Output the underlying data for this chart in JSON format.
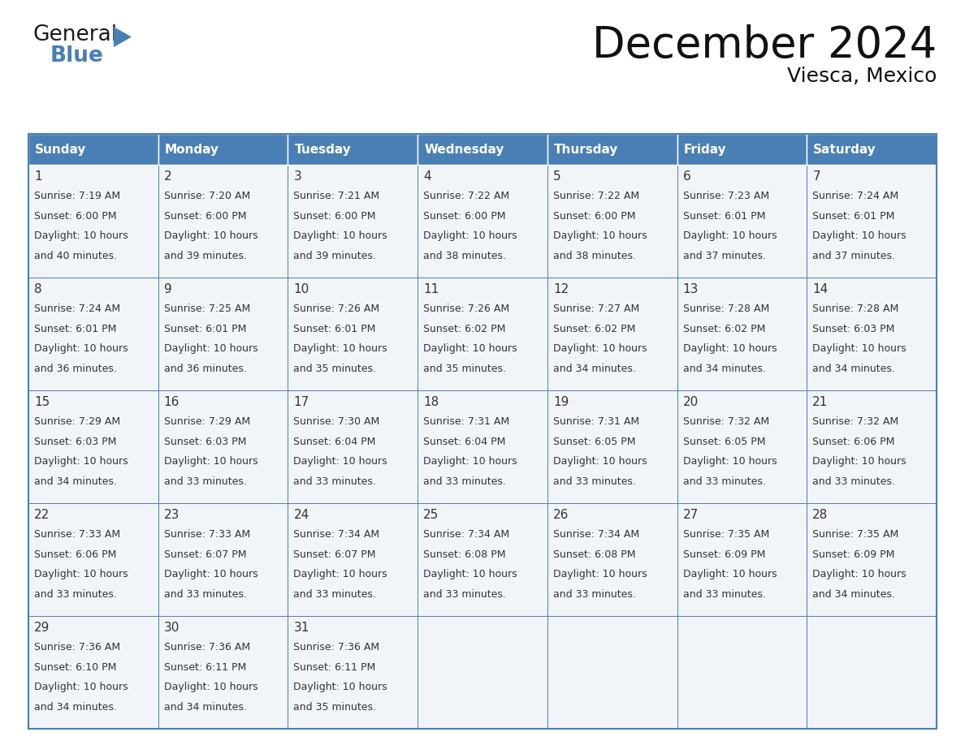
{
  "title": "December 2024",
  "subtitle": "Viesca, Mexico",
  "header_bg_color": "#4a7fb5",
  "header_text_color": "#ffffff",
  "cell_bg_color": "#f2f5f8",
  "border_color": "#4a7fb5",
  "text_color": "#333333",
  "day_names": [
    "Sunday",
    "Monday",
    "Tuesday",
    "Wednesday",
    "Thursday",
    "Friday",
    "Saturday"
  ],
  "days": [
    {
      "day": 1,
      "col": 0,
      "row": 0,
      "sunrise": "7:19 AM",
      "sunset": "6:00 PM",
      "daylight": "10 hours and 40 minutes."
    },
    {
      "day": 2,
      "col": 1,
      "row": 0,
      "sunrise": "7:20 AM",
      "sunset": "6:00 PM",
      "daylight": "10 hours and 39 minutes."
    },
    {
      "day": 3,
      "col": 2,
      "row": 0,
      "sunrise": "7:21 AM",
      "sunset": "6:00 PM",
      "daylight": "10 hours and 39 minutes."
    },
    {
      "day": 4,
      "col": 3,
      "row": 0,
      "sunrise": "7:22 AM",
      "sunset": "6:00 PM",
      "daylight": "10 hours and 38 minutes."
    },
    {
      "day": 5,
      "col": 4,
      "row": 0,
      "sunrise": "7:22 AM",
      "sunset": "6:00 PM",
      "daylight": "10 hours and 38 minutes."
    },
    {
      "day": 6,
      "col": 5,
      "row": 0,
      "sunrise": "7:23 AM",
      "sunset": "6:01 PM",
      "daylight": "10 hours and 37 minutes."
    },
    {
      "day": 7,
      "col": 6,
      "row": 0,
      "sunrise": "7:24 AM",
      "sunset": "6:01 PM",
      "daylight": "10 hours and 37 minutes."
    },
    {
      "day": 8,
      "col": 0,
      "row": 1,
      "sunrise": "7:24 AM",
      "sunset": "6:01 PM",
      "daylight": "10 hours and 36 minutes."
    },
    {
      "day": 9,
      "col": 1,
      "row": 1,
      "sunrise": "7:25 AM",
      "sunset": "6:01 PM",
      "daylight": "10 hours and 36 minutes."
    },
    {
      "day": 10,
      "col": 2,
      "row": 1,
      "sunrise": "7:26 AM",
      "sunset": "6:01 PM",
      "daylight": "10 hours and 35 minutes."
    },
    {
      "day": 11,
      "col": 3,
      "row": 1,
      "sunrise": "7:26 AM",
      "sunset": "6:02 PM",
      "daylight": "10 hours and 35 minutes."
    },
    {
      "day": 12,
      "col": 4,
      "row": 1,
      "sunrise": "7:27 AM",
      "sunset": "6:02 PM",
      "daylight": "10 hours and 34 minutes."
    },
    {
      "day": 13,
      "col": 5,
      "row": 1,
      "sunrise": "7:28 AM",
      "sunset": "6:02 PM",
      "daylight": "10 hours and 34 minutes."
    },
    {
      "day": 14,
      "col": 6,
      "row": 1,
      "sunrise": "7:28 AM",
      "sunset": "6:03 PM",
      "daylight": "10 hours and 34 minutes."
    },
    {
      "day": 15,
      "col": 0,
      "row": 2,
      "sunrise": "7:29 AM",
      "sunset": "6:03 PM",
      "daylight": "10 hours and 34 minutes."
    },
    {
      "day": 16,
      "col": 1,
      "row": 2,
      "sunrise": "7:29 AM",
      "sunset": "6:03 PM",
      "daylight": "10 hours and 33 minutes."
    },
    {
      "day": 17,
      "col": 2,
      "row": 2,
      "sunrise": "7:30 AM",
      "sunset": "6:04 PM",
      "daylight": "10 hours and 33 minutes."
    },
    {
      "day": 18,
      "col": 3,
      "row": 2,
      "sunrise": "7:31 AM",
      "sunset": "6:04 PM",
      "daylight": "10 hours and 33 minutes."
    },
    {
      "day": 19,
      "col": 4,
      "row": 2,
      "sunrise": "7:31 AM",
      "sunset": "6:05 PM",
      "daylight": "10 hours and 33 minutes."
    },
    {
      "day": 20,
      "col": 5,
      "row": 2,
      "sunrise": "7:32 AM",
      "sunset": "6:05 PM",
      "daylight": "10 hours and 33 minutes."
    },
    {
      "day": 21,
      "col": 6,
      "row": 2,
      "sunrise": "7:32 AM",
      "sunset": "6:06 PM",
      "daylight": "10 hours and 33 minutes."
    },
    {
      "day": 22,
      "col": 0,
      "row": 3,
      "sunrise": "7:33 AM",
      "sunset": "6:06 PM",
      "daylight": "10 hours and 33 minutes."
    },
    {
      "day": 23,
      "col": 1,
      "row": 3,
      "sunrise": "7:33 AM",
      "sunset": "6:07 PM",
      "daylight": "10 hours and 33 minutes."
    },
    {
      "day": 24,
      "col": 2,
      "row": 3,
      "sunrise": "7:34 AM",
      "sunset": "6:07 PM",
      "daylight": "10 hours and 33 minutes."
    },
    {
      "day": 25,
      "col": 3,
      "row": 3,
      "sunrise": "7:34 AM",
      "sunset": "6:08 PM",
      "daylight": "10 hours and 33 minutes."
    },
    {
      "day": 26,
      "col": 4,
      "row": 3,
      "sunrise": "7:34 AM",
      "sunset": "6:08 PM",
      "daylight": "10 hours and 33 minutes."
    },
    {
      "day": 27,
      "col": 5,
      "row": 3,
      "sunrise": "7:35 AM",
      "sunset": "6:09 PM",
      "daylight": "10 hours and 33 minutes."
    },
    {
      "day": 28,
      "col": 6,
      "row": 3,
      "sunrise": "7:35 AM",
      "sunset": "6:09 PM",
      "daylight": "10 hours and 34 minutes."
    },
    {
      "day": 29,
      "col": 0,
      "row": 4,
      "sunrise": "7:36 AM",
      "sunset": "6:10 PM",
      "daylight": "10 hours and 34 minutes."
    },
    {
      "day": 30,
      "col": 1,
      "row": 4,
      "sunrise": "7:36 AM",
      "sunset": "6:11 PM",
      "daylight": "10 hours and 34 minutes."
    },
    {
      "day": 31,
      "col": 2,
      "row": 4,
      "sunrise": "7:36 AM",
      "sunset": "6:11 PM",
      "daylight": "10 hours and 35 minutes."
    }
  ],
  "num_rows": 5,
  "logo_color_general": "#1a1a1a",
  "logo_color_blue": "#4a7fb5",
  "logo_triangle_color": "#4a7fb5",
  "title_fontsize": 38,
  "subtitle_fontsize": 18,
  "header_fontsize": 11,
  "daynum_fontsize": 11,
  "cell_fontsize": 9
}
